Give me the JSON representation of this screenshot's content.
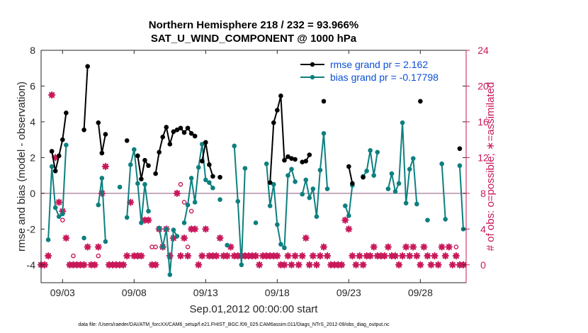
{
  "chart_data": {
    "type": "line",
    "title_line1": "Northern Hemisphere 218 / 232 = 93.966%",
    "title_line2": "SAT_U_WIND_COMPONENT @ 1000 hPa",
    "ylabel_left": "rmse and bias (model - observation)",
    "ylabel_right": "# of obs: o=possible; ∗=assimilated",
    "xlabel": "Sep.01,2012 00:00:00 start",
    "footer": "data file: /Users/raeder/DAI/ATM_forcXX/CAM6_setup/f.e21.FHIST_BGC.f09_025.CAM6assim.011/Diags_NTrS_2012-09/obs_diag_output.nc",
    "xlim": [
      1.5,
      31.2
    ],
    "ylim_left": [
      -5,
      8
    ],
    "ylim_right": [
      -2,
      24
    ],
    "yticks_left": [
      "-4",
      "-2",
      "0",
      "2",
      "4",
      "6",
      "8"
    ],
    "yticks_right": [
      "0",
      "4",
      "8",
      "12",
      "16",
      "20",
      "24"
    ],
    "xticks": [
      {
        "x": 3,
        "label": "09/03"
      },
      {
        "x": 8,
        "label": "09/08"
      },
      {
        "x": 13,
        "label": "09/13"
      },
      {
        "x": 18,
        "label": "09/18"
      },
      {
        "x": 23,
        "label": "09/23"
      },
      {
        "x": 28,
        "label": "09/28"
      }
    ],
    "legend": [
      {
        "name": "rmse grand pr = 2.162",
        "color": "#000000"
      },
      {
        "name": "bias grand pr = -0.17798",
        "color": "#0e7f7f"
      }
    ],
    "colors": {
      "rmse": "#000000",
      "bias": "#0e7f7f",
      "obs": "#c8185a",
      "zero": "#b58fa8",
      "axis": "#262626"
    },
    "series": [
      {
        "name": "rmse",
        "points": [
          [
            2.25,
            2.35
          ],
          [
            2.5,
            1.25
          ],
          [
            2.75,
            2.1
          ],
          [
            3.0,
            3.0
          ],
          [
            3.25,
            4.5
          ],
          null,
          [
            4.5,
            3.55
          ],
          [
            4.75,
            7.1
          ],
          null,
          [
            5.5,
            3.95
          ],
          [
            5.75,
            2.25
          ],
          [
            6.0,
            3.3
          ],
          null,
          [
            7.5,
            2.95
          ],
          null,
          [
            8.25,
            2.1
          ],
          [
            8.5,
            0.8
          ],
          [
            8.75,
            1.85
          ],
          [
            9.0,
            1.55
          ],
          null,
          [
            9.5,
            1.1
          ],
          [
            9.75,
            2.3
          ],
          [
            10.0,
            3.15
          ],
          [
            10.25,
            3.7
          ],
          [
            10.5,
            2.75
          ],
          [
            10.75,
            3.45
          ],
          [
            11.0,
            3.55
          ],
          [
            11.25,
            3.65
          ],
          [
            11.5,
            3.4
          ],
          [
            11.75,
            3.65
          ],
          [
            12.0,
            3.35
          ],
          [
            12.25,
            3.2
          ],
          null,
          [
            12.75,
            1.8
          ],
          [
            13.0,
            2.85
          ],
          [
            13.25,
            1.6
          ],
          [
            13.5,
            0.95
          ],
          null,
          [
            14.0,
            0.9
          ],
          null,
          [
            17.5,
            0.6
          ],
          [
            17.75,
            3.95
          ],
          [
            18.0,
            4.65
          ],
          [
            18.25,
            5.45
          ],
          [
            18.5,
            1.85
          ],
          [
            18.75,
            2.05
          ],
          [
            19.0,
            1.95
          ],
          [
            19.25,
            1.9
          ],
          null,
          [
            19.75,
            1.75
          ],
          [
            20.0,
            1.8
          ],
          [
            20.25,
            2.15
          ],
          null,
          [
            21.25,
            5.15
          ],
          null,
          [
            23.0,
            1.5
          ],
          [
            23.25,
            0.55
          ],
          null,
          [
            24.0,
            0.9
          ],
          null,
          [
            28.0,
            5.15
          ],
          null,
          [
            30.75,
            2.5
          ]
        ]
      },
      {
        "name": "bias",
        "points": [
          [
            2.0,
            -2.6
          ],
          [
            2.25,
            1.5
          ],
          [
            2.5,
            -0.8
          ],
          [
            2.75,
            -1.3
          ],
          [
            3.0,
            -1.15
          ],
          [
            3.25,
            2.7
          ],
          null,
          [
            4.5,
            -2.5
          ],
          null,
          [
            5.5,
            -0.65
          ],
          [
            5.75,
            0.85
          ],
          [
            6.0,
            -2.7
          ],
          null,
          [
            7.0,
            0.35
          ],
          null,
          [
            7.5,
            -1.35
          ],
          [
            7.75,
            1.6
          ],
          [
            8.0,
            2.45
          ],
          [
            8.25,
            0.55
          ],
          [
            8.5,
            -1.65
          ],
          [
            8.75,
            0.5
          ],
          [
            9.0,
            -1.0
          ],
          null,
          [
            9.75,
            -1.95
          ],
          [
            10.0,
            -3.0
          ],
          [
            10.25,
            -2.0
          ],
          [
            10.5,
            -4.55
          ],
          [
            10.75,
            -2.05
          ],
          [
            11.0,
            -2.4
          ],
          null,
          [
            11.5,
            -1.65
          ],
          [
            11.75,
            -0.65
          ],
          [
            12.0,
            0.85
          ],
          [
            12.25,
            -0.5
          ],
          [
            12.5,
            1.45
          ],
          [
            12.75,
            2.75
          ],
          [
            13.0,
            0.75
          ],
          [
            13.25,
            0.6
          ],
          [
            13.5,
            0.3
          ],
          null,
          [
            14.0,
            -0.35
          ],
          null,
          [
            14.5,
            -2.9
          ],
          null,
          [
            15.0,
            2.65
          ],
          [
            15.25,
            -0.45
          ],
          [
            15.5,
            -4.0
          ],
          [
            15.75,
            1.4
          ],
          null,
          [
            16.5,
            -1.65
          ],
          null,
          [
            17.25,
            1.65
          ],
          [
            17.5,
            -0.7
          ],
          [
            17.75,
            0.5
          ],
          [
            18.0,
            -1.75
          ],
          [
            18.25,
            -2.85
          ],
          [
            18.5,
            -3.05
          ],
          [
            18.75,
            1.0
          ],
          [
            19.0,
            1.35
          ],
          [
            19.25,
            0.65
          ],
          null,
          [
            19.75,
            -0.05
          ],
          [
            20.0,
            0.75
          ],
          [
            20.25,
            -0.25
          ],
          [
            20.5,
            0.25
          ],
          [
            20.75,
            -1.3
          ],
          [
            21.0,
            1.3
          ],
          [
            21.25,
            3.35
          ],
          [
            21.5,
            0.25
          ],
          null,
          [
            22.75,
            -0.7
          ],
          [
            23.0,
            -1.25
          ],
          [
            23.25,
            0.45
          ],
          null,
          [
            24.0,
            0.95
          ],
          [
            24.25,
            1.25
          ],
          [
            24.5,
            2.4
          ],
          [
            24.75,
            1.0
          ],
          [
            25.0,
            2.3
          ],
          null,
          [
            25.75,
            0.25
          ],
          [
            26.0,
            1.1
          ],
          [
            26.25,
            0.1
          ],
          [
            26.5,
            0.55
          ],
          [
            26.75,
            3.95
          ],
          [
            27.0,
            -0.55
          ],
          [
            27.25,
            1.35
          ],
          [
            27.5,
            1.95
          ],
          [
            27.75,
            -0.6
          ],
          null,
          [
            28.5,
            -1.5
          ],
          null,
          [
            29.5,
            1.65
          ],
          [
            29.75,
            -1.45
          ],
          null,
          [
            30.75,
            1.55
          ],
          [
            31.0,
            -2.0
          ]
        ]
      }
    ],
    "obs_assimilated": [
      [
        1.5,
        0
      ],
      [
        1.75,
        0
      ],
      [
        2.0,
        1
      ],
      [
        2.25,
        19
      ],
      [
        2.5,
        12
      ],
      [
        2.75,
        7
      ],
      [
        3.0,
        6
      ],
      [
        3.25,
        3
      ],
      [
        3.5,
        0
      ],
      [
        3.75,
        0
      ],
      [
        4.0,
        0
      ],
      [
        4.25,
        0
      ],
      [
        4.5,
        0
      ],
      [
        4.75,
        2
      ],
      [
        5.0,
        0
      ],
      [
        5.25,
        0
      ],
      [
        5.5,
        2
      ],
      [
        5.75,
        8
      ],
      [
        6.0,
        11
      ],
      [
        6.25,
        0
      ],
      [
        6.5,
        0
      ],
      [
        6.75,
        0
      ],
      [
        7.0,
        0
      ],
      [
        7.25,
        0
      ],
      [
        7.5,
        1
      ],
      [
        7.75,
        7
      ],
      [
        8.0,
        1
      ],
      [
        8.25,
        1
      ],
      [
        8.5,
        1
      ],
      [
        8.75,
        5
      ],
      [
        9.0,
        5
      ],
      [
        9.25,
        0
      ],
      [
        9.5,
        0
      ],
      [
        9.75,
        4
      ],
      [
        10.0,
        2
      ],
      [
        10.25,
        4
      ],
      [
        10.5,
        1
      ],
      [
        10.75,
        3
      ],
      [
        11.0,
        8
      ],
      [
        11.25,
        1
      ],
      [
        11.5,
        3
      ],
      [
        11.75,
        1
      ],
      [
        12.0,
        4
      ],
      [
        12.25,
        4
      ],
      [
        12.5,
        0
      ],
      [
        12.75,
        1
      ],
      [
        13.0,
        4
      ],
      [
        13.25,
        1
      ],
      [
        13.5,
        1
      ],
      [
        13.75,
        1
      ],
      [
        14.0,
        3
      ],
      [
        14.25,
        1
      ],
      [
        14.5,
        1
      ],
      [
        14.75,
        2
      ],
      [
        15.0,
        1
      ],
      [
        15.25,
        1
      ],
      [
        15.5,
        1
      ],
      [
        15.75,
        1
      ],
      [
        16.0,
        1
      ],
      [
        16.25,
        1
      ],
      [
        16.5,
        1
      ],
      [
        16.75,
        0
      ],
      [
        17.0,
        1
      ],
      [
        17.25,
        1
      ],
      [
        17.5,
        1
      ],
      [
        17.75,
        1
      ],
      [
        18.0,
        1
      ],
      [
        18.25,
        0
      ],
      [
        18.5,
        0
      ],
      [
        18.75,
        1
      ],
      [
        19.0,
        0
      ],
      [
        19.25,
        1
      ],
      [
        19.5,
        0
      ],
      [
        19.75,
        1
      ],
      [
        20.0,
        3
      ],
      [
        20.25,
        0
      ],
      [
        20.5,
        1
      ],
      [
        20.75,
        0
      ],
      [
        21.0,
        1
      ],
      [
        21.25,
        2
      ],
      [
        21.5,
        1
      ],
      [
        21.75,
        0
      ],
      [
        22.0,
        0
      ],
      [
        22.25,
        0
      ],
      [
        22.5,
        0
      ],
      [
        22.75,
        5
      ],
      [
        23.0,
        4
      ],
      [
        23.25,
        1
      ],
      [
        23.5,
        0
      ],
      [
        23.75,
        1
      ],
      [
        24.0,
        0
      ],
      [
        24.25,
        1
      ],
      [
        24.5,
        1
      ],
      [
        24.75,
        2
      ],
      [
        25.0,
        1
      ],
      [
        25.25,
        1
      ],
      [
        25.5,
        1
      ],
      [
        25.75,
        2
      ],
      [
        26.0,
        1
      ],
      [
        26.25,
        1
      ],
      [
        26.5,
        0
      ],
      [
        26.75,
        1
      ],
      [
        27.0,
        2
      ],
      [
        27.25,
        1
      ],
      [
        27.5,
        2
      ],
      [
        27.75,
        1
      ],
      [
        28.0,
        0
      ],
      [
        28.25,
        2
      ],
      [
        28.5,
        1
      ],
      [
        28.75,
        0
      ],
      [
        29.0,
        1
      ],
      [
        29.25,
        0
      ],
      [
        29.5,
        2
      ],
      [
        29.75,
        1
      ],
      [
        30.0,
        2
      ],
      [
        30.25,
        0
      ],
      [
        30.5,
        1
      ],
      [
        30.75,
        0
      ],
      [
        31.0,
        0
      ]
    ],
    "obs_possible": [
      [
        2.25,
        19
      ],
      [
        3.0,
        5
      ],
      [
        3.75,
        1
      ],
      [
        5.5,
        1
      ],
      [
        6.0,
        11
      ],
      [
        9.25,
        2
      ],
      [
        9.5,
        2
      ],
      [
        11.0,
        8
      ],
      [
        11.25,
        9
      ],
      [
        11.5,
        7
      ],
      [
        11.75,
        2
      ],
      [
        12.0,
        6
      ],
      [
        30.5,
        2
      ]
    ]
  }
}
